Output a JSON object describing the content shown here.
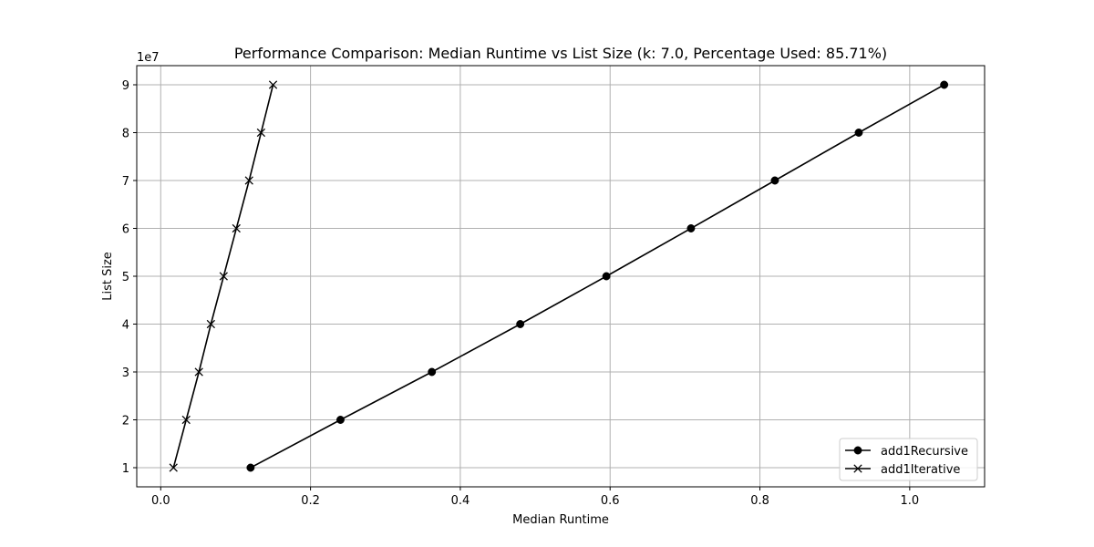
{
  "chart_data": {
    "type": "line",
    "title": "Performance Comparison: Median Runtime vs List Size (k: 7.0, Percentage Used: 85.71%)",
    "xlabel": "Median Runtime",
    "ylabel": "List Size",
    "y_offset_label": "1e7",
    "xlim": [
      -0.032,
      1.1
    ],
    "ylim": [
      0.6,
      9.4
    ],
    "xticks": [
      0.0,
      0.2,
      0.4,
      0.6,
      0.8,
      1.0
    ],
    "xtick_labels": [
      "0.0",
      "0.2",
      "0.4",
      "0.6",
      "0.8",
      "1.0"
    ],
    "yticks": [
      1,
      2,
      3,
      4,
      5,
      6,
      7,
      8,
      9
    ],
    "ytick_labels": [
      "1",
      "2",
      "3",
      "4",
      "5",
      "6",
      "7",
      "8",
      "9"
    ],
    "grid": true,
    "legend_position": "lower-right",
    "series": [
      {
        "name": "add1Recursive",
        "marker": "circle",
        "color": "#000000",
        "x": [
          0.12,
          0.24,
          0.362,
          0.48,
          0.595,
          0.708,
          0.82,
          0.932,
          1.046
        ],
        "y": [
          1,
          2,
          3,
          4,
          5,
          6,
          7,
          8,
          9
        ]
      },
      {
        "name": "add1Iterative",
        "marker": "x",
        "color": "#000000",
        "x": [
          0.017,
          0.034,
          0.051,
          0.067,
          0.084,
          0.101,
          0.118,
          0.134,
          0.15
        ],
        "y": [
          1,
          2,
          3,
          4,
          5,
          6,
          7,
          8,
          9
        ]
      }
    ]
  }
}
